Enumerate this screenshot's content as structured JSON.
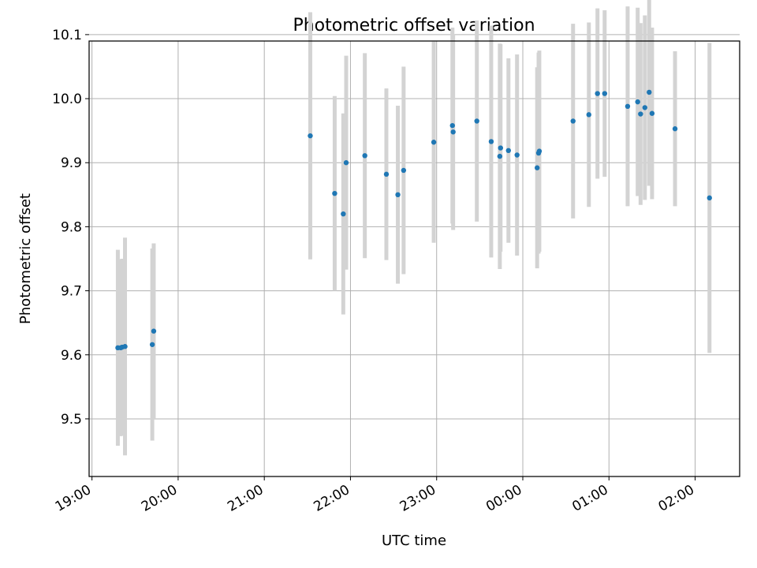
{
  "chart_data": {
    "type": "scatter",
    "title": "Photometric offset variation",
    "xlabel": "UTC time",
    "ylabel": "Photometric offset",
    "xlim": [
      "2000-01-01T18:58:00",
      "2000-01-02T02:31:00"
    ],
    "ylim": [
      9.41,
      10.09
    ],
    "grid": true,
    "x_ticks": [
      {
        "t": "2000-01-01T19:00:00",
        "label": "19:00"
      },
      {
        "t": "2000-01-01T20:00:00",
        "label": "20:00"
      },
      {
        "t": "2000-01-01T21:00:00",
        "label": "21:00"
      },
      {
        "t": "2000-01-01T22:00:00",
        "label": "22:00"
      },
      {
        "t": "2000-01-01T23:00:00",
        "label": "23:00"
      },
      {
        "t": "2000-01-02T00:00:00",
        "label": "00:00"
      },
      {
        "t": "2000-01-02T01:00:00",
        "label": "01:00"
      },
      {
        "t": "2000-01-02T02:00:00",
        "label": "02:00"
      }
    ],
    "y_ticks": [
      9.5,
      9.6,
      9.7,
      9.8,
      9.9,
      10.0,
      10.1
    ],
    "y_tick_labels": [
      "9.5",
      "9.6",
      "9.7",
      "9.8",
      "9.9",
      "10.0",
      "10.1"
    ],
    "colors": {
      "points": "#1f77b4",
      "errorbars": "#d3d3d3",
      "grid": "#b0b0b0"
    },
    "points": [
      {
        "t": "2000-01-01T19:18:00",
        "y": 9.611,
        "err": 0.153
      },
      {
        "t": "2000-01-01T19:20:00",
        "y": 9.611,
        "err": 0.138
      },
      {
        "t": "2000-01-01T19:21:00",
        "y": 9.612,
        "err": 0.138
      },
      {
        "t": "2000-01-01T19:23:00",
        "y": 9.613,
        "err": 0.17
      },
      {
        "t": "2000-01-01T19:42:00",
        "y": 9.616,
        "err": 0.15
      },
      {
        "t": "2000-01-01T19:43:00",
        "y": 9.637,
        "err": 0.137
      },
      {
        "t": "2000-01-01T21:32:00",
        "y": 9.942,
        "err": 0.193
      },
      {
        "t": "2000-01-01T21:49:00",
        "y": 9.852,
        "err": 0.152
      },
      {
        "t": "2000-01-01T21:55:00",
        "y": 9.82,
        "err": 0.157
      },
      {
        "t": "2000-01-01T21:57:00",
        "y": 9.9,
        "err": 0.167
      },
      {
        "t": "2000-01-01T22:10:00",
        "y": 9.911,
        "err": 0.16
      },
      {
        "t": "2000-01-01T22:25:00",
        "y": 9.882,
        "err": 0.134
      },
      {
        "t": "2000-01-01T22:33:00",
        "y": 9.85,
        "err": 0.139
      },
      {
        "t": "2000-01-01T22:37:00",
        "y": 9.888,
        "err": 0.162
      },
      {
        "t": "2000-01-01T22:58:00",
        "y": 9.932,
        "err": 0.157
      },
      {
        "t": "2000-01-01T23:11:00",
        "y": 9.958,
        "err": 0.153
      },
      {
        "t": "2000-01-01T23:11:30",
        "y": 9.948,
        "err": 0.153
      },
      {
        "t": "2000-01-01T23:28:00",
        "y": 9.965,
        "err": 0.157
      },
      {
        "t": "2000-01-01T23:38:00",
        "y": 9.933,
        "err": 0.181
      },
      {
        "t": "2000-01-01T23:44:00",
        "y": 9.91,
        "err": 0.176
      },
      {
        "t": "2000-01-01T23:44:30",
        "y": 9.923,
        "err": 0.162
      },
      {
        "t": "2000-01-01T23:50:00",
        "y": 9.919,
        "err": 0.144
      },
      {
        "t": "2000-01-01T23:56:00",
        "y": 9.912,
        "err": 0.157
      },
      {
        "t": "2000-01-02T00:10:00",
        "y": 9.892,
        "err": 0.157
      },
      {
        "t": "2000-01-02T00:11:00",
        "y": 9.915,
        "err": 0.157
      },
      {
        "t": "2000-01-02T00:11:30",
        "y": 9.918,
        "err": 0.157
      },
      {
        "t": "2000-01-02T00:35:00",
        "y": 9.965,
        "err": 0.152
      },
      {
        "t": "2000-01-02T00:46:00",
        "y": 9.975,
        "err": 0.144
      },
      {
        "t": "2000-01-02T00:52:00",
        "y": 10.008,
        "err": 0.133
      },
      {
        "t": "2000-01-02T00:57:00",
        "y": 10.008,
        "err": 0.13
      },
      {
        "t": "2000-01-02T01:13:00",
        "y": 9.988,
        "err": 0.156
      },
      {
        "t": "2000-01-02T01:20:00",
        "y": 9.995,
        "err": 0.147
      },
      {
        "t": "2000-01-02T01:22:00",
        "y": 9.976,
        "err": 0.142
      },
      {
        "t": "2000-01-02T01:25:00",
        "y": 9.986,
        "err": 0.144
      },
      {
        "t": "2000-01-02T01:28:00",
        "y": 10.01,
        "err": 0.146
      },
      {
        "t": "2000-01-02T01:30:00",
        "y": 9.977,
        "err": 0.134
      },
      {
        "t": "2000-01-02T01:46:00",
        "y": 9.953,
        "err": 0.121
      },
      {
        "t": "2000-01-02T02:10:00",
        "y": 9.845,
        "err": 0.242
      }
    ]
  }
}
